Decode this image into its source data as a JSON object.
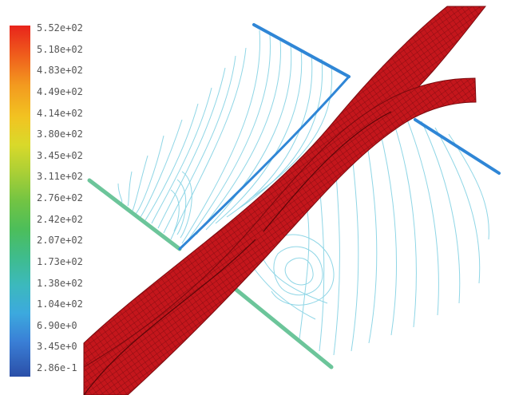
{
  "legend": {
    "labels": [
      "5.52e+02",
      "5.18e+02",
      "4.83e+02",
      "4.49e+02",
      "4.14e+02",
      "3.80e+02",
      "3.45e+02",
      "3.11e+02",
      "2.76e+02",
      "2.42e+02",
      "2.07e+02",
      "1.73e+02",
      "1.38e+02",
      "1.04e+02",
      "6.90e+0",
      "3.45e+0",
      "2.86e-1"
    ]
  },
  "colors": {
    "blade_fill": "#c4161c",
    "blade_mesh": "#7a0a0e",
    "contour_line": "#8fd6e6",
    "boundary_blue": "#2f86d6",
    "boundary_green": "#6cc59a"
  }
}
